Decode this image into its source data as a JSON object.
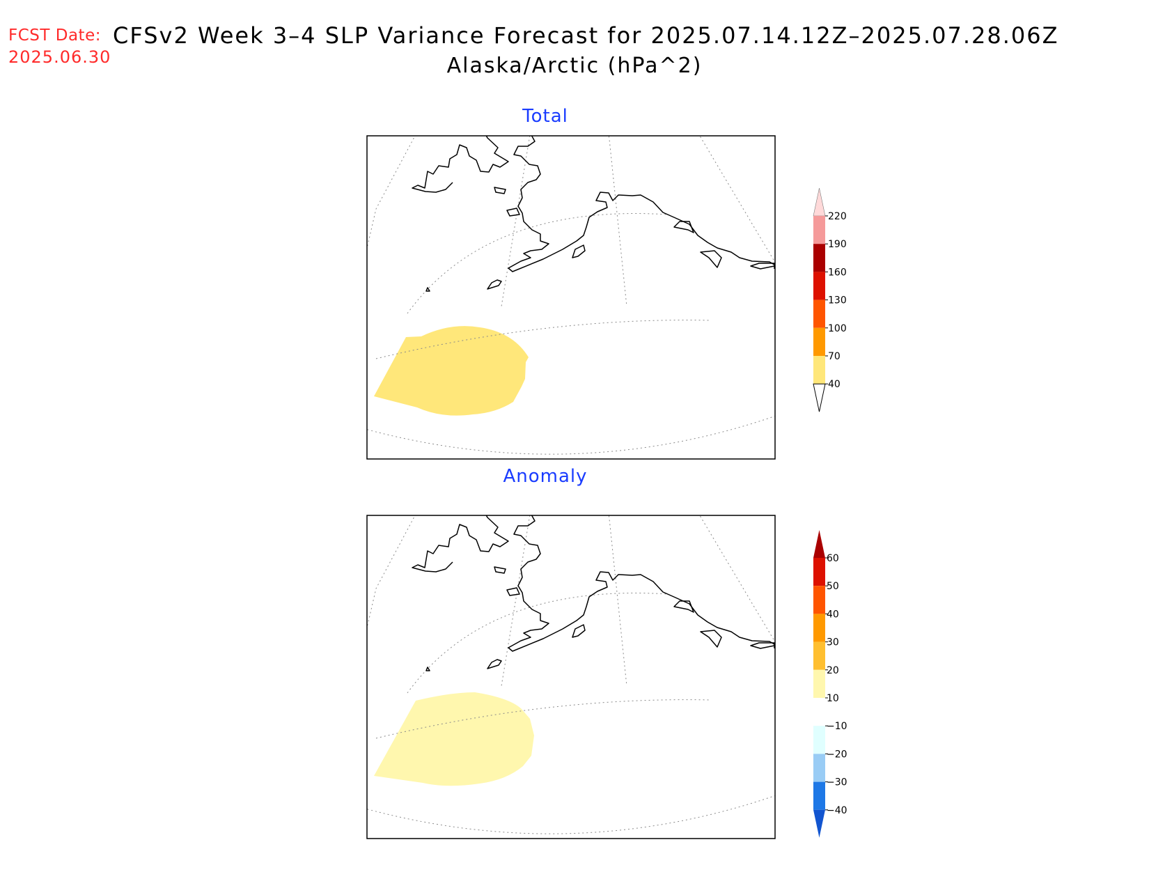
{
  "header": {
    "fcst_label": "FCST Date:",
    "fcst_date": "2025.06.30",
    "title": "CFSv2 Week 3–4 SLP Variance Forecast for 2025.07.14.12Z–2025.07.28.06Z",
    "subtitle": "Alaska/Arctic (hPa^2)"
  },
  "panels": [
    {
      "title": "Total",
      "colorbar": {
        "labels": [
          "220",
          "190",
          "160",
          "130",
          "100",
          "70",
          "40"
        ],
        "colors": [
          "#ffd9d9",
          "#f59a9a",
          "#aa0000",
          "#dd1100",
          "#ff5500",
          "#ff9900",
          "#ffe77a"
        ],
        "below_min": "#ffffff"
      },
      "shaded_region_color": "#ffe77a"
    },
    {
      "title": "Anomaly",
      "colorbar": {
        "labels": [
          "60",
          "50",
          "40",
          "30",
          "20",
          "10",
          "−10",
          "−20",
          "−30",
          "−40"
        ],
        "colors": [
          "#aa0000",
          "#dd1100",
          "#ff5500",
          "#ff9900",
          "#ffbf30",
          "#fff7ae",
          "#ffffff",
          "#e0ffff",
          "#99ccf5",
          "#1e78e6",
          "#1255d0"
        ]
      },
      "shaded_region_color": "#fff7ae"
    }
  ]
}
